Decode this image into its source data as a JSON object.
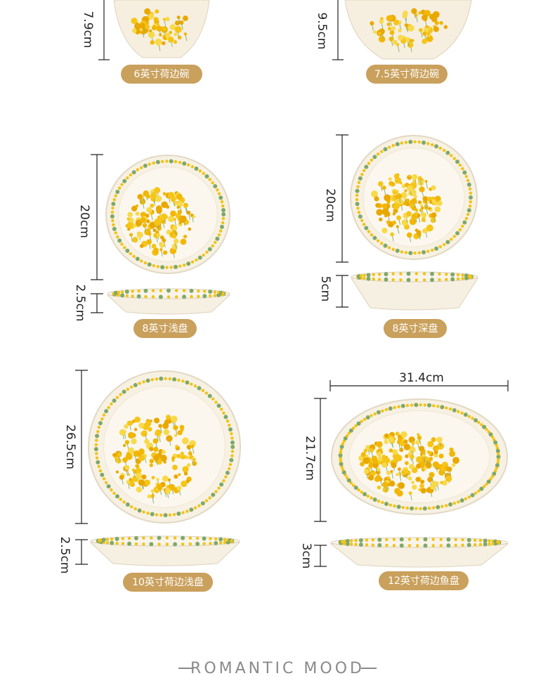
{
  "products": [
    {
      "name": "6英寸荷边碗",
      "height": "7.9cm"
    },
    {
      "name": "7.5英寸荷边碗",
      "height": "9.5cm"
    },
    {
      "name": "8英寸浅盘",
      "diameter": "20cm",
      "height": "2.5cm"
    },
    {
      "name": "8英寸深盘",
      "diameter": "20cm",
      "height": "5cm"
    },
    {
      "name": "10英寸荷边浅盘",
      "diameter": "26.5cm",
      "height": "2.5cm"
    },
    {
      "name": "12英寸荷边鱼盘",
      "length": "31.4cm",
      "width": "21.7cm",
      "height": "3cm"
    }
  ],
  "footer": "ROMANTIC MOOD"
}
